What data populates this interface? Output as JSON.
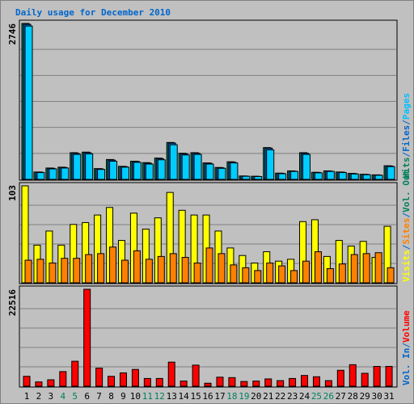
{
  "title": "Daily usage for December 2010",
  "legend": {
    "top": [
      {
        "label": "Hits",
        "color": "#00805c"
      },
      {
        "label": "/",
        "color": "#0066cc"
      },
      {
        "label": "Files",
        "color": "#0066cc"
      },
      {
        "label": "/",
        "color": "#0066cc"
      },
      {
        "label": "Pages",
        "color": "#00c0ff"
      }
    ],
    "middle": [
      {
        "label": "Visits",
        "color": "#ffff00"
      },
      {
        "label": "/",
        "color": "#0066cc"
      },
      {
        "label": "Sites",
        "color": "#ff8000"
      },
      {
        "label": "/",
        "color": "#0066cc"
      },
      {
        "label": "Vol. Out",
        "color": "#00805c"
      }
    ],
    "bottom": [
      {
        "label": "Vol. In",
        "color": "#0066cc"
      },
      {
        "label": "/",
        "color": "#0066cc"
      },
      {
        "label": "Volume",
        "color": "#ff0000"
      }
    ]
  },
  "colors": {
    "hits": "#00805c",
    "files": "#0066cc",
    "pages": "#00ccff",
    "visits": "#ffff00",
    "sites": "#ff8000",
    "volume": "#ff0000",
    "weekday_label": "#000000",
    "weekend_label": "#00805c"
  },
  "chart_data": [
    {
      "type": "bar",
      "panel": "hits-files-pages",
      "max_label": "2746",
      "ylim": [
        0,
        2746
      ],
      "categories": [
        "1",
        "2",
        "3",
        "4",
        "5",
        "6",
        "7",
        "8",
        "9",
        "10",
        "11",
        "12",
        "13",
        "14",
        "15",
        "16",
        "17",
        "18",
        "19",
        "20",
        "21",
        "22",
        "23",
        "24",
        "25",
        "26",
        "27",
        "28",
        "29",
        "30",
        "31"
      ],
      "weekend_days": [
        "4",
        "5",
        "11",
        "12",
        "18",
        "19",
        "25",
        "26"
      ],
      "series": [
        {
          "name": "Hits",
          "values": [
            2746,
            130,
            200,
            215,
            470,
            480,
            190,
            350,
            230,
            320,
            295,
            375,
            650,
            460,
            470,
            290,
            210,
            310,
            60,
            55,
            560,
            110,
            150,
            470,
            125,
            150,
            130,
            105,
            90,
            80,
            240
          ]
        },
        {
          "name": "Files",
          "values": [
            2730,
            128,
            195,
            210,
            460,
            470,
            185,
            340,
            225,
            315,
            285,
            365,
            640,
            450,
            460,
            285,
            205,
            300,
            58,
            52,
            550,
            108,
            145,
            460,
            122,
            145,
            128,
            102,
            88,
            78,
            235
          ]
        },
        {
          "name": "Pages",
          "values": [
            2700,
            120,
            185,
            200,
            440,
            450,
            175,
            320,
            215,
            300,
            270,
            345,
            610,
            430,
            440,
            270,
            195,
            290,
            55,
            50,
            520,
            100,
            140,
            440,
            115,
            140,
            120,
            95,
            82,
            72,
            225
          ]
        }
      ]
    },
    {
      "type": "bar",
      "panel": "visits-sites",
      "max_label": "103",
      "ylim": [
        0,
        103
      ],
      "categories": [
        "1",
        "2",
        "3",
        "4",
        "5",
        "6",
        "7",
        "8",
        "9",
        "10",
        "11",
        "12",
        "13",
        "14",
        "15",
        "16",
        "17",
        "18",
        "19",
        "20",
        "21",
        "22",
        "23",
        "24",
        "25",
        "26",
        "27",
        "28",
        "29",
        "30",
        "31"
      ],
      "series": [
        {
          "name": "Visits",
          "values": [
            103,
            40,
            55,
            40,
            62,
            64,
            72,
            80,
            45,
            74,
            57,
            69,
            96,
            77,
            72,
            72,
            55,
            37,
            29,
            21,
            33,
            23,
            25,
            65,
            67,
            28,
            45,
            39,
            44,
            27,
            60
          ]
        },
        {
          "name": "Sites",
          "values": [
            24,
            25,
            21,
            26,
            26,
            30,
            31,
            38,
            24,
            34,
            25,
            28,
            31,
            27,
            21,
            37,
            31,
            19,
            16,
            13,
            21,
            18,
            13,
            23,
            33,
            15,
            20,
            30,
            31,
            32,
            16
          ]
        }
      ]
    },
    {
      "type": "bar",
      "panel": "volume",
      "max_label": "22516",
      "ylim": [
        0,
        22516
      ],
      "categories": [
        "1",
        "2",
        "3",
        "4",
        "5",
        "6",
        "7",
        "8",
        "9",
        "10",
        "11",
        "12",
        "13",
        "14",
        "15",
        "16",
        "17",
        "18",
        "19",
        "20",
        "21",
        "22",
        "23",
        "24",
        "25",
        "26",
        "27",
        "28",
        "29",
        "30",
        "31"
      ],
      "series": [
        {
          "name": "Volume",
          "values": [
            2300,
            1000,
            1500,
            3400,
            5800,
            22516,
            4200,
            2300,
            3100,
            3900,
            1800,
            1800,
            5600,
            1200,
            4900,
            700,
            2100,
            2000,
            1100,
            1200,
            1700,
            1300,
            1800,
            2500,
            2200,
            1300,
            3700,
            5000,
            3000,
            4600,
            4600
          ]
        }
      ]
    }
  ]
}
